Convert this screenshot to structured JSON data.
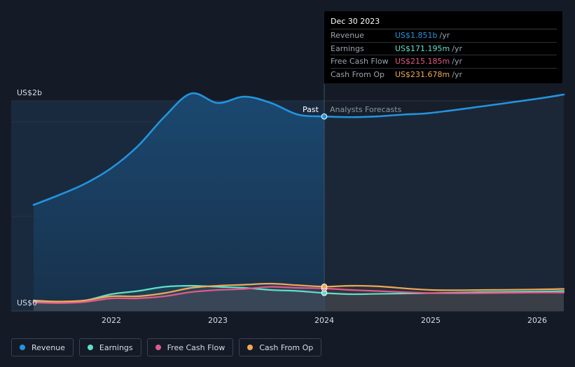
{
  "tooltip": {
    "date": "Dec 30 2023",
    "rows": [
      {
        "label": "Revenue",
        "value": "US$1.851b",
        "unit": "/yr",
        "color": "#2394df"
      },
      {
        "label": "Earnings",
        "value": "US$171.195m",
        "unit": "/yr",
        "color": "#5fe0c8"
      },
      {
        "label": "Free Cash Flow",
        "value": "US$215.185m",
        "unit": "/yr",
        "color": "#e05a8b"
      },
      {
        "label": "Cash From Op",
        "value": "US$231.678m",
        "unit": "/yr",
        "color": "#f0a956"
      }
    ]
  },
  "legend": [
    {
      "label": "Revenue",
      "color": "#2394df"
    },
    {
      "label": "Earnings",
      "color": "#5fe0c8"
    },
    {
      "label": "Free Cash Flow",
      "color": "#e05a8b"
    },
    {
      "label": "Cash From Op",
      "color": "#f0a956"
    }
  ],
  "chart_data": {
    "type": "line",
    "title": "",
    "y_axis_labels": [
      "US$2b",
      "US$0"
    ],
    "ylim": [
      0,
      2.0
    ],
    "xlim": [
      2021.27,
      2026.25
    ],
    "x_ticks": [
      "2022",
      "2023",
      "2024",
      "2025",
      "2026"
    ],
    "x_tick_values": [
      2022,
      2023,
      2024,
      2025,
      2026
    ],
    "divider_x": 2024.0,
    "past_label": "Past",
    "forecast_label": "Analysts Forecasts",
    "series": [
      {
        "name": "Revenue",
        "color": "#2394df",
        "x": [
          2021.27,
          2021.5,
          2021.75,
          2022.0,
          2022.25,
          2022.5,
          2022.75,
          2023.0,
          2023.25,
          2023.5,
          2023.75,
          2024.0,
          2024.25,
          2024.5,
          2024.75,
          2025.0,
          2025.5,
          2026.0,
          2026.25
        ],
        "y": [
          1.01,
          1.1,
          1.21,
          1.36,
          1.57,
          1.85,
          2.07,
          1.98,
          2.04,
          1.98,
          1.87,
          1.851,
          1.845,
          1.852,
          1.87,
          1.885,
          1.95,
          2.02,
          2.06
        ]
      },
      {
        "name": "Earnings",
        "color": "#5fe0c8",
        "x": [
          2021.27,
          2021.5,
          2021.75,
          2022.0,
          2022.25,
          2022.5,
          2022.75,
          2023.0,
          2023.25,
          2023.5,
          2023.75,
          2024.0,
          2024.25,
          2024.5,
          2025.0,
          2025.5,
          2026.0,
          2026.25
        ],
        "y": [
          0.09,
          0.085,
          0.1,
          0.16,
          0.19,
          0.23,
          0.24,
          0.23,
          0.22,
          0.2,
          0.19,
          0.171,
          0.16,
          0.163,
          0.17,
          0.18,
          0.185,
          0.19
        ]
      },
      {
        "name": "Free Cash Flow",
        "color": "#e05a8b",
        "x": [
          2021.27,
          2021.5,
          2021.75,
          2022.0,
          2022.25,
          2022.5,
          2022.75,
          2023.0,
          2023.25,
          2023.5,
          2023.75,
          2024.0,
          2024.25,
          2024.5,
          2025.0,
          2025.5,
          2026.0,
          2026.25
        ],
        "y": [
          0.08,
          0.075,
          0.085,
          0.12,
          0.12,
          0.14,
          0.18,
          0.2,
          0.21,
          0.23,
          0.22,
          0.215,
          0.2,
          0.19,
          0.17,
          0.17,
          0.175,
          0.175
        ]
      },
      {
        "name": "Cash From Op",
        "color": "#f0a956",
        "x": [
          2021.27,
          2021.5,
          2021.75,
          2022.0,
          2022.25,
          2022.5,
          2022.75,
          2023.0,
          2023.25,
          2023.5,
          2023.75,
          2024.0,
          2024.25,
          2024.5,
          2025.0,
          2025.5,
          2026.0,
          2026.25
        ],
        "y": [
          0.1,
          0.09,
          0.1,
          0.14,
          0.14,
          0.17,
          0.22,
          0.24,
          0.25,
          0.26,
          0.245,
          0.232,
          0.24,
          0.235,
          0.2,
          0.2,
          0.205,
          0.21
        ]
      }
    ]
  }
}
